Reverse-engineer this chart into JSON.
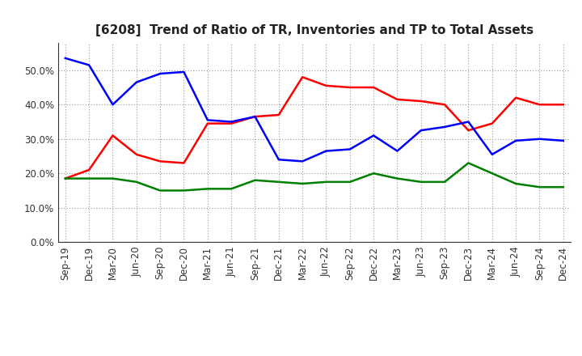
{
  "title": "[6208]  Trend of Ratio of TR, Inventories and TP to Total Assets",
  "x_labels": [
    "Sep-19",
    "Dec-19",
    "Mar-20",
    "Jun-20",
    "Sep-20",
    "Dec-20",
    "Mar-21",
    "Jun-21",
    "Sep-21",
    "Dec-21",
    "Mar-22",
    "Jun-22",
    "Sep-22",
    "Dec-22",
    "Mar-23",
    "Jun-23",
    "Sep-23",
    "Dec-23",
    "Mar-24",
    "Jun-24",
    "Sep-24",
    "Dec-24"
  ],
  "trade_receivables": [
    0.185,
    0.21,
    0.31,
    0.255,
    0.235,
    0.23,
    0.345,
    0.345,
    0.365,
    0.37,
    0.48,
    0.455,
    0.45,
    0.45,
    0.415,
    0.41,
    0.4,
    0.325,
    0.345,
    0.42,
    0.4,
    0.4
  ],
  "inventories": [
    0.535,
    0.515,
    0.4,
    0.465,
    0.49,
    0.495,
    0.355,
    0.35,
    0.365,
    0.24,
    0.235,
    0.265,
    0.27,
    0.31,
    0.265,
    0.325,
    0.335,
    0.35,
    0.255,
    0.295,
    0.3,
    0.295
  ],
  "trade_payables": [
    0.185,
    0.185,
    0.185,
    0.175,
    0.15,
    0.15,
    0.155,
    0.155,
    0.18,
    0.175,
    0.17,
    0.175,
    0.175,
    0.2,
    0.185,
    0.175,
    0.175,
    0.23,
    0.2,
    0.17,
    0.16,
    0.16
  ],
  "tr_color": "#FF0000",
  "inv_color": "#0000FF",
  "tp_color": "#008000",
  "ylim": [
    0.0,
    0.58
  ],
  "yticks": [
    0.0,
    0.1,
    0.2,
    0.3,
    0.4,
    0.5
  ],
  "background_color": "#FFFFFF",
  "grid_color": "#999999",
  "title_fontsize": 11,
  "tick_fontsize": 8.5,
  "legend_fontsize": 9
}
